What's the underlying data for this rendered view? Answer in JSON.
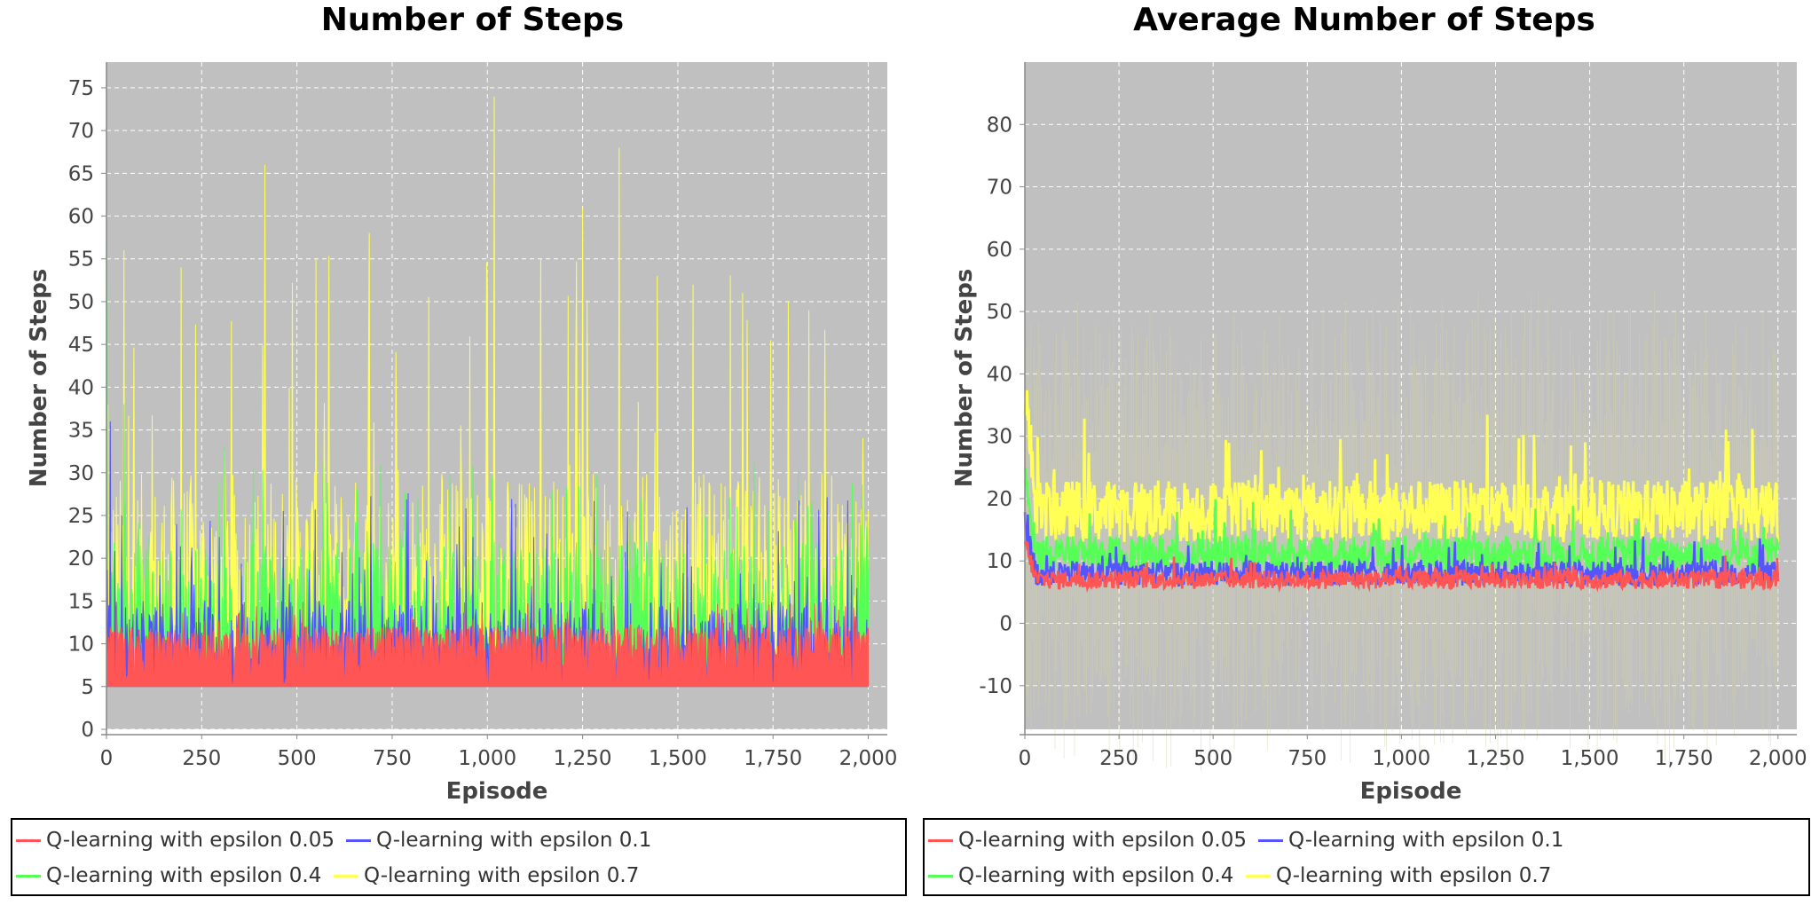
{
  "charts": [
    {
      "title": "Number of Steps",
      "xlabel": "Episode",
      "ylabel": "Number of Steps",
      "x_tick_labels": [
        "0",
        "250",
        "500",
        "750",
        "1,000",
        "1,250",
        "1,500",
        "1,750",
        "2,000"
      ],
      "y_tick_labels": [
        "0",
        "5",
        "10",
        "15",
        "20",
        "25",
        "30",
        "35",
        "40",
        "45",
        "50",
        "55",
        "60",
        "65",
        "70",
        "75"
      ]
    },
    {
      "title": "Average Number of Steps",
      "xlabel": "Episode",
      "ylabel": "Number of Steps",
      "x_tick_labels": [
        "0",
        "250",
        "500",
        "750",
        "1,000",
        "1,250",
        "1,500",
        "1,750",
        "2,000"
      ],
      "y_tick_labels": [
        "-10",
        "0",
        "10",
        "20",
        "30",
        "40",
        "50",
        "60",
        "70",
        "80"
      ]
    }
  ],
  "legend": [
    {
      "label": "Q-learning with epsilon 0.05",
      "color": "#ff5555"
    },
    {
      "label": "Q-learning with epsilon 0.1",
      "color": "#5555ff"
    },
    {
      "label": "Q-learning with epsilon 0.4",
      "color": "#55ff55"
    },
    {
      "label": "Q-learning with epsilon 0.7",
      "color": "#ffff55"
    }
  ],
  "chart_data": [
    {
      "type": "line",
      "title": "Number of Steps",
      "xlabel": "Episode",
      "ylabel": "Number of Steps",
      "xlim": [
        0,
        2050
      ],
      "ylim": [
        0,
        78
      ],
      "grid": true,
      "legend_position": "bottom",
      "series": [
        {
          "name": "Q-learning with epsilon 0.05",
          "color": "#ff5555",
          "min": 5,
          "typical_max": 12,
          "peak": 17
        },
        {
          "name": "Q-learning with epsilon 0.1",
          "color": "#5555ff",
          "min": 5,
          "typical_max": 15,
          "peak": 36
        },
        {
          "name": "Q-learning with epsilon 0.4",
          "color": "#55ff55",
          "min": 5,
          "typical_max": 22,
          "peak": 38
        },
        {
          "name": "Q-learning with epsilon 0.7",
          "color": "#ffff55",
          "min": 5,
          "typical_max": 30,
          "peak": 74
        }
      ]
    },
    {
      "type": "line",
      "title": "Average Number of Steps",
      "xlabel": "Episode",
      "ylabel": "Number of Steps",
      "xlim": [
        0,
        2050
      ],
      "ylim": [
        -17,
        90
      ],
      "grid": true,
      "legend_position": "bottom",
      "series": [
        {
          "name": "Q-learning with epsilon 0.05",
          "color": "#ff5555",
          "mean": 7,
          "spread": 1.5
        },
        {
          "name": "Q-learning with epsilon 0.1",
          "color": "#5555ff",
          "mean": 8,
          "spread": 2
        },
        {
          "name": "Q-learning with epsilon 0.4",
          "color": "#55ff55",
          "mean": 11,
          "spread": 3
        },
        {
          "name": "Q-learning with epsilon 0.7",
          "color": "#ffff55",
          "mean": 18,
          "spread": 5
        }
      ]
    }
  ]
}
